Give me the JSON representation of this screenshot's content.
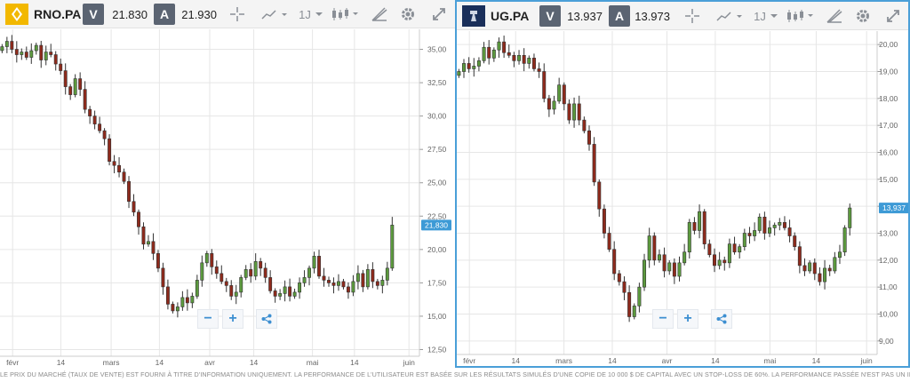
{
  "panels": [
    {
      "ticker": "RNO.PA",
      "sell_label": "V",
      "sell_price": "21.830",
      "buy_label": "A",
      "buy_price": "21.930",
      "interval": "1J",
      "logo": "renault-logo-icon"
    },
    {
      "ticker": "UG.PA",
      "sell_label": "V",
      "sell_price": "13.937",
      "buy_label": "A",
      "buy_price": "13.973",
      "interval": "1J",
      "logo": "peugeot-logo-icon"
    }
  ],
  "zoom": {
    "minus": "−",
    "plus": "+"
  },
  "disclaimer": "LE PRIX DU MARCHÉ (TAUX DE VENTE) EST FOURNI À TITRE D'INFORMATION UNIQUEMENT. LA PERFORMANCE DE L'UTILISATEUR EST BASÉE SUR LES RÉSULTATS SIMULÉS D'UNE COPIE DE 10 000 $ DE CAPITAL AVEC UN STOP-LOSS DE 60%. LA PERFORMANCE PASSÉE N'EST PAS UN INDICATEUR FIABLE DES RÉSULTATS FUTURS.",
  "colors": {
    "up": "#5c9a3e",
    "down": "#8e2a1c",
    "price_tag": "#3d9ad6",
    "grid": "#e6e6e6"
  },
  "chart_data": [
    {
      "type": "candlestick",
      "x_ticks": [
        "févr",
        "14",
        "mars",
        "14",
        "avr",
        "14",
        "mai",
        "14",
        "juin"
      ],
      "ylim": [
        12,
        36.5
      ],
      "y_ticks": [
        "35,00",
        "32,50",
        "30,00",
        "27,50",
        "25,00",
        "22,50",
        "20,00",
        "17,50",
        "15,00",
        "12,50"
      ],
      "y_tick_values": [
        35,
        32.5,
        30,
        27.5,
        25,
        22.5,
        20,
        17.5,
        15,
        12.5
      ],
      "last_price": "21,830",
      "last_value": 21.83,
      "closes": [
        35.2,
        35.6,
        35.0,
        34.6,
        34.8,
        34.4,
        34.9,
        35.3,
        34.2,
        34.8,
        34.6,
        33.9,
        33.4,
        32.2,
        31.6,
        32.8,
        32.0,
        30.5,
        30.0,
        29.4,
        28.9,
        28.3,
        26.6,
        26.3,
        25.8,
        25.1,
        23.6,
        22.8,
        21.7,
        20.4,
        20.6,
        19.7,
        18.6,
        17.2,
        15.9,
        15.4,
        15.7,
        16.4,
        16.0,
        16.5,
        17.7,
        19.0,
        19.7,
        18.7,
        18.2,
        17.6,
        17.3,
        16.5,
        16.8,
        17.9,
        18.5,
        18.0,
        19.1,
        18.6,
        17.9,
        16.9,
        16.5,
        16.7,
        17.2,
        16.5,
        16.8,
        17.5,
        17.9,
        18.6,
        19.5,
        18.0,
        17.7,
        17.5,
        17.3,
        17.6,
        17.2,
        16.8,
        17.6,
        18.2,
        17.2,
        18.5,
        17.6,
        17.3,
        17.7,
        18.6,
        21.83
      ]
    },
    {
      "type": "candlestick",
      "x_ticks": [
        "févr",
        "14",
        "mars",
        "14",
        "avr",
        "14",
        "mai",
        "14",
        "juin"
      ],
      "ylim": [
        8.5,
        20.5
      ],
      "y_ticks": [
        "20,00",
        "19,00",
        "18,00",
        "17,00",
        "16,00",
        "15,00",
        "14,00",
        "13,00",
        "12,00",
        "11,00",
        "10,00",
        "9,00"
      ],
      "y_tick_values": [
        20,
        19,
        18,
        17,
        16,
        15,
        14,
        13,
        12,
        11,
        10,
        9
      ],
      "last_price": "13,937",
      "last_value": 13.937,
      "closes": [
        19.0,
        19.3,
        19.1,
        19.2,
        19.4,
        19.9,
        19.5,
        19.8,
        20.1,
        19.7,
        19.6,
        19.4,
        19.6,
        19.3,
        19.5,
        19.1,
        19.0,
        18.0,
        17.6,
        17.9,
        18.5,
        17.8,
        17.2,
        17.8,
        17.2,
        16.8,
        16.3,
        14.9,
        13.9,
        13.0,
        12.4,
        11.5,
        11.2,
        10.8,
        9.9,
        10.3,
        11.0,
        12.0,
        12.9,
        12.0,
        12.2,
        11.6,
        11.9,
        11.4,
        11.9,
        12.3,
        13.4,
        13.1,
        13.8,
        12.6,
        12.2,
        11.8,
        12.0,
        11.9,
        12.6,
        12.3,
        12.5,
        13.0,
        12.9,
        13.1,
        13.6,
        13.0,
        13.2,
        13.3,
        13.4,
        13.2,
        12.9,
        12.5,
        11.8,
        11.6,
        11.9,
        11.5,
        11.2,
        11.7,
        11.6,
        12.1,
        12.3,
        13.2,
        13.937
      ]
    }
  ]
}
